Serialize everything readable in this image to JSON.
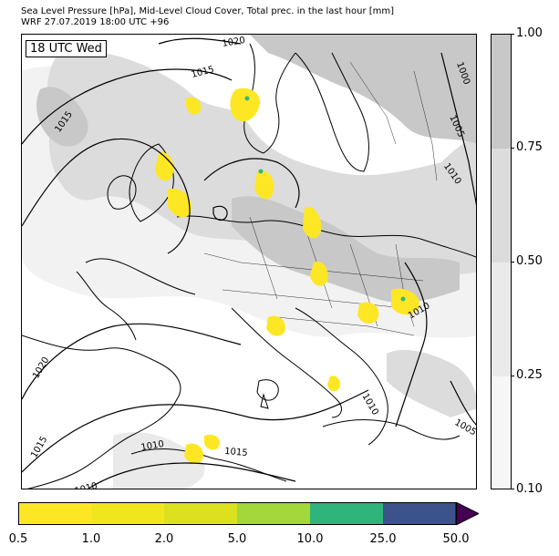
{
  "header": {
    "title_line1": "Sea Level Pressure [hPa], Mid-Level Cloud Cover, Total prec. in the last hour [mm]",
    "title_line2": "WRF 27.07.2019 18:00 UTC +96"
  },
  "map": {
    "time_label": "18 UTC Wed",
    "isobar_labels": [
      {
        "value": "1020",
        "region": "top-center",
        "rotation": -10
      },
      {
        "value": "1015",
        "region": "top-center-left",
        "rotation": -15
      },
      {
        "value": "1015",
        "region": "left-upper",
        "rotation": -55
      },
      {
        "value": "1000",
        "region": "top-right",
        "rotation": 70
      },
      {
        "value": "1005",
        "region": "right-upper",
        "rotation": 65
      },
      {
        "value": "1010",
        "region": "right-middle",
        "rotation": 55
      },
      {
        "value": "1010",
        "region": "center-right",
        "rotation": -30
      },
      {
        "value": "1020",
        "region": "left-lower",
        "rotation": -60
      },
      {
        "value": "1010",
        "region": "lower-right",
        "rotation": 60
      },
      {
        "value": "1005",
        "region": "lower-right-edge",
        "rotation": 30
      },
      {
        "value": "1015",
        "region": "left-bottom",
        "rotation": -60
      },
      {
        "value": "1010",
        "region": "bottom-center",
        "rotation": -10
      },
      {
        "value": "1015",
        "region": "bottom-center-right",
        "rotation": 5
      },
      {
        "value": "1010",
        "region": "bottom-left",
        "rotation": -15
      }
    ],
    "colors": {
      "cloud_light": "#f2f2f2",
      "cloud_mid": "#dcdcdc",
      "cloud_dense": "#c8c8c8",
      "precip_yellow": "#fde725",
      "precip_green": "#35b779",
      "land_line": "#000000"
    }
  },
  "cloud_colorbar": {
    "segments": [
      {
        "range": "0.75-1.00",
        "color": "#c8c8c8"
      },
      {
        "range": "0.50-0.75",
        "color": "#dcdcdc"
      },
      {
        "range": "0.25-0.50",
        "color": "#eaeaea"
      },
      {
        "range": "0.10-0.25",
        "color": "#f6f6f6"
      }
    ],
    "tick_labels": [
      "1.00",
      "0.75",
      "0.50",
      "0.25",
      "0.10"
    ]
  },
  "precip_colorbar": {
    "colors": [
      "#fde725",
      "#f1e61d",
      "#dbe01f",
      "#a2d83a",
      "#2fb47c",
      "#3b528b"
    ],
    "extend_color": "#440154",
    "tick_labels": [
      "0.5",
      "1.0",
      "2.0",
      "5.0",
      "10.0",
      "25.0",
      "50.0"
    ]
  }
}
